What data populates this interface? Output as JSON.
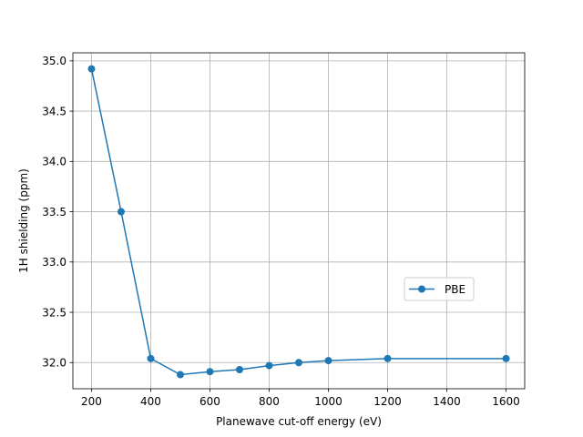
{
  "chart_data": {
    "type": "line",
    "xlabel": "Planewave cut-off energy (eV)",
    "ylabel": "1H shielding (ppm)",
    "xlim": [
      137,
      1663
    ],
    "ylim": [
      31.74,
      35.08
    ],
    "xticks": [
      200,
      400,
      600,
      800,
      1000,
      1200,
      1400,
      1600
    ],
    "yticks": [
      32.0,
      32.5,
      33.0,
      33.5,
      34.0,
      34.5,
      35.0
    ],
    "grid": true,
    "legend_position": "center-right",
    "series": [
      {
        "name": "PBE",
        "color": "#1f77b4",
        "marker": "circle",
        "x": [
          200,
          300,
          400,
          500,
          600,
          700,
          800,
          900,
          1000,
          1200,
          1600
        ],
        "y": [
          34.92,
          33.5,
          32.04,
          31.88,
          31.91,
          31.93,
          31.97,
          32.0,
          32.02,
          32.04,
          32.04
        ]
      }
    ]
  }
}
